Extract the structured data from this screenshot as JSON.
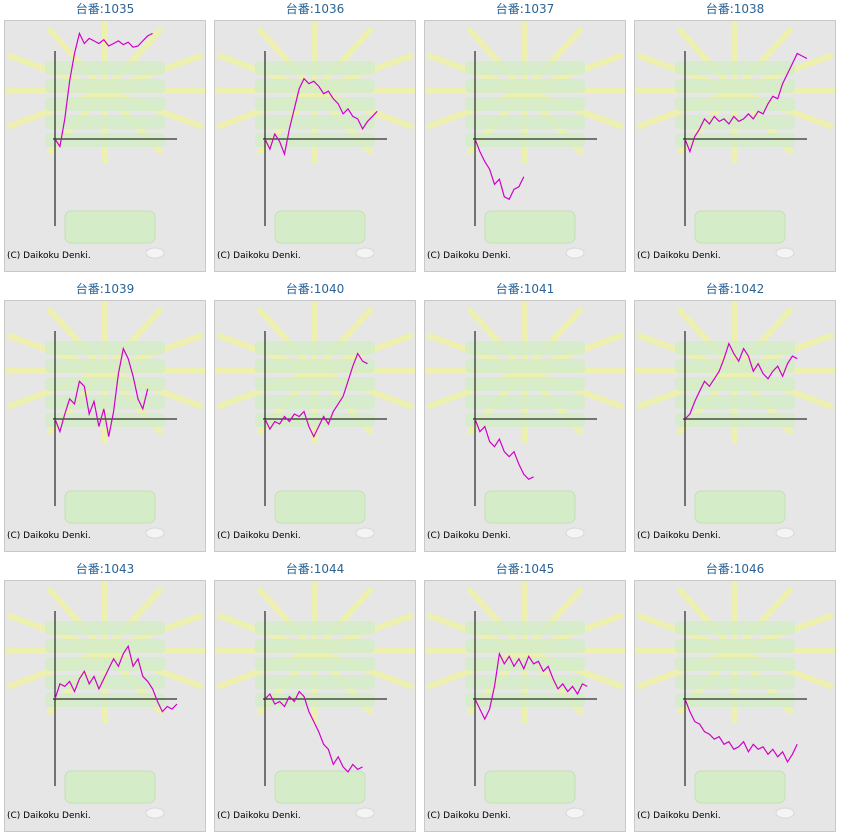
{
  "colors": {
    "title": "#2a6497",
    "series": "#d000c8",
    "axis": "#000000",
    "panel_bg": "#e6e6e6",
    "panel_border": "#c8c8c8",
    "art_green": "#d4ecc8",
    "art_yellow": "#eef0b0"
  },
  "copyright": "(C) Daikoku Denki.",
  "background_icons": [
    "sunburst-art-icon",
    "tray-art-icon",
    "coin-art-icon"
  ],
  "machines": [
    {
      "title": "台番:1035"
    },
    {
      "title": "台番:1036"
    },
    {
      "title": "台番:1037"
    },
    {
      "title": "台番:1038"
    },
    {
      "title": "台番:1039"
    },
    {
      "title": "台番:1040"
    },
    {
      "title": "台番:1041"
    },
    {
      "title": "台番:1042"
    },
    {
      "title": "台番:1043"
    },
    {
      "title": "台番:1044"
    },
    {
      "title": "台番:1045"
    },
    {
      "title": "台番:1046"
    }
  ],
  "chart_data": [
    {
      "type": "line",
      "title": "台番:1035",
      "x": [
        0,
        10,
        20,
        30,
        40,
        50,
        60,
        70,
        80,
        90,
        100,
        110,
        120,
        130,
        140,
        150,
        160,
        170,
        180,
        190,
        200
      ],
      "values": [
        0,
        -300,
        800,
        2300,
        3400,
        4200,
        3800,
        4000,
        3900,
        3800,
        3950,
        3700,
        3800,
        3900,
        3750,
        3850,
        3650,
        3700,
        3900,
        4100,
        4200
      ]
    },
    {
      "type": "line",
      "title": "台番:1036",
      "x": [
        0,
        10,
        20,
        30,
        40,
        50,
        60,
        70,
        80,
        90,
        100,
        110,
        120,
        130,
        140,
        150,
        160,
        170,
        180,
        190,
        200,
        210,
        220,
        230
      ],
      "values": [
        0,
        -400,
        200,
        -100,
        -600,
        400,
        1200,
        2000,
        2400,
        2200,
        2300,
        2100,
        1800,
        1900,
        1600,
        1400,
        1000,
        1200,
        900,
        800,
        400,
        700,
        900,
        1100
      ]
    },
    {
      "type": "line",
      "title": "台番:1037",
      "x": [
        0,
        10,
        20,
        30,
        40,
        50,
        60,
        70,
        80,
        90,
        100
      ],
      "values": [
        0,
        -500,
        -900,
        -1200,
        -1800,
        -1600,
        -2300,
        -2400,
        -2000,
        -1900,
        -1500
      ]
    },
    {
      "type": "line",
      "title": "台番:1038",
      "x": [
        0,
        10,
        20,
        30,
        40,
        50,
        60,
        70,
        80,
        90,
        100,
        110,
        120,
        130,
        140,
        150,
        160,
        170,
        180,
        190,
        200,
        210,
        220,
        230,
        240,
        250
      ],
      "values": [
        0,
        -500,
        100,
        400,
        800,
        600,
        900,
        700,
        800,
        600,
        900,
        700,
        800,
        1000,
        800,
        1100,
        1000,
        1400,
        1700,
        1600,
        2200,
        2600,
        3000,
        3400,
        3300,
        3200
      ]
    },
    {
      "type": "line",
      "title": "台番:1039",
      "x": [
        0,
        10,
        20,
        30,
        40,
        50,
        60,
        70,
        80,
        90,
        100,
        110,
        120,
        130,
        140,
        150,
        160,
        170,
        180,
        190
      ],
      "values": [
        0,
        -500,
        200,
        800,
        600,
        1500,
        1300,
        200,
        700,
        -300,
        400,
        -700,
        300,
        1800,
        2800,
        2400,
        1700,
        800,
        400,
        1200
      ]
    },
    {
      "type": "line",
      "title": "台番:1040",
      "x": [
        0,
        10,
        20,
        30,
        40,
        50,
        60,
        70,
        80,
        90,
        100,
        110,
        120,
        130,
        140,
        150,
        160,
        170,
        180,
        190,
        200,
        210
      ],
      "values": [
        0,
        -400,
        -100,
        -200,
        100,
        -100,
        200,
        100,
        300,
        -300,
        -700,
        -300,
        100,
        -200,
        300,
        600,
        900,
        1500,
        2100,
        2600,
        2300,
        2200
      ]
    },
    {
      "type": "line",
      "title": "台番:1041",
      "x": [
        0,
        10,
        20,
        30,
        40,
        50,
        60,
        70,
        80,
        90,
        100,
        110,
        120
      ],
      "values": [
        0,
        -500,
        -300,
        -900,
        -1100,
        -800,
        -1300,
        -1500,
        -1300,
        -1800,
        -2200,
        -2400,
        -2300
      ]
    },
    {
      "type": "line",
      "title": "台番:1042",
      "x": [
        0,
        10,
        20,
        30,
        40,
        50,
        60,
        70,
        80,
        90,
        100,
        110,
        120,
        130,
        140,
        150,
        160,
        170,
        180,
        190,
        200,
        210,
        220,
        230
      ],
      "values": [
        0,
        200,
        700,
        1100,
        1500,
        1300,
        1600,
        1900,
        2400,
        3000,
        2600,
        2300,
        2800,
        2500,
        1900,
        2200,
        1800,
        1600,
        1900,
        2100,
        1700,
        2200,
        2500,
        2400
      ]
    },
    {
      "type": "line",
      "title": "台番:1043",
      "x": [
        0,
        10,
        20,
        30,
        40,
        50,
        60,
        70,
        80,
        90,
        100,
        110,
        120,
        130,
        140,
        150,
        160,
        170,
        180,
        190,
        200,
        210,
        220,
        230,
        240,
        250
      ],
      "values": [
        0,
        600,
        500,
        700,
        300,
        800,
        1100,
        600,
        900,
        400,
        800,
        1200,
        1600,
        1300,
        1800,
        2100,
        1300,
        1600,
        900,
        700,
        400,
        -100,
        -500,
        -300,
        -400,
        -200
      ]
    },
    {
      "type": "line",
      "title": "台番:1044",
      "x": [
        0,
        10,
        20,
        30,
        40,
        50,
        60,
        70,
        80,
        90,
        100,
        110,
        120,
        130,
        140,
        150,
        160,
        170,
        180,
        190,
        200
      ],
      "values": [
        0,
        200,
        -200,
        -100,
        -300,
        100,
        -100,
        300,
        100,
        -500,
        -900,
        -1300,
        -1800,
        -2000,
        -2600,
        -2300,
        -2700,
        -2900,
        -2600,
        -2800,
        -2700
      ]
    },
    {
      "type": "line",
      "title": "台番:1045",
      "x": [
        0,
        10,
        20,
        30,
        40,
        50,
        60,
        70,
        80,
        90,
        100,
        110,
        120,
        130,
        140,
        150,
        160,
        170,
        180,
        190,
        200,
        210,
        220,
        230
      ],
      "values": [
        0,
        -400,
        -800,
        -400,
        500,
        1800,
        1400,
        1700,
        1300,
        1600,
        1200,
        1700,
        1400,
        1500,
        1100,
        1300,
        800,
        400,
        600,
        300,
        500,
        200,
        600,
        500
      ]
    },
    {
      "type": "line",
      "title": "台番:1046",
      "x": [
        0,
        10,
        20,
        30,
        40,
        50,
        60,
        70,
        80,
        90,
        100,
        110,
        120,
        130,
        140,
        150,
        160,
        170,
        180,
        190,
        200,
        210,
        220,
        230
      ],
      "values": [
        0,
        -500,
        -900,
        -1000,
        -1300,
        -1400,
        -1600,
        -1500,
        -1800,
        -1700,
        -2000,
        -1900,
        -1700,
        -2100,
        -1800,
        -2000,
        -1900,
        -2200,
        -2000,
        -2300,
        -2100,
        -2500,
        -2200,
        -1800
      ]
    }
  ]
}
